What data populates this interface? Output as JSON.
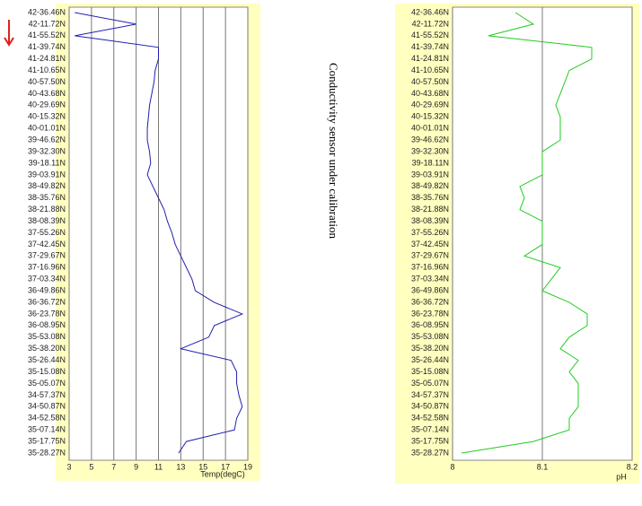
{
  "annotation": "Conductivity sensor under calibration",
  "chart_data": [
    {
      "type": "line",
      "orientation": "horizontal",
      "xlabel": "Temp(degC)",
      "categories": [
        "42-36.46N",
        "42-11.72N",
        "41-55.52N",
        "41-39.74N",
        "41-24.81N",
        "41-10.65N",
        "40-57.50N",
        "40-43.68N",
        "40-29.69N",
        "40-15.32N",
        "40-01.01N",
        "39-46.62N",
        "39-32.30N",
        "39-18.11N",
        "39-03.91N",
        "38-49.82N",
        "38-35.76N",
        "38-21.88N",
        "38-08.39N",
        "37-55.26N",
        "37-42.45N",
        "37-29.67N",
        "37-16.96N",
        "37-03.34N",
        "36-49.86N",
        "36-36.72N",
        "36-23.78N",
        "36-08.95N",
        "35-53.08N",
        "35-38.20N",
        "35-26.44N",
        "35-15.08N",
        "35-05.07N",
        "34-57.37N",
        "34-50.87N",
        "34-52.58N",
        "35-07.14N",
        "35-17.75N",
        "35-28.27N"
      ],
      "series": [
        {
          "color": "#2020b0",
          "values": [
            3.5,
            9,
            3.5,
            11,
            11,
            10.7,
            10.6,
            10.4,
            10.2,
            10.1,
            10,
            10,
            10.2,
            10.3,
            10,
            10.5,
            11,
            11.5,
            11.8,
            12.2,
            12.5,
            13,
            13.5,
            14,
            14.3,
            16,
            18.5,
            16,
            15.5,
            13,
            17.5,
            18,
            18,
            18.2,
            18.5,
            18,
            17.8,
            13.5,
            12.8
          ]
        }
      ],
      "xlim": [
        3,
        19
      ],
      "xticks": [
        3,
        5,
        7,
        9,
        11,
        13,
        15,
        17,
        19
      ],
      "grid": true
    },
    {
      "type": "line",
      "orientation": "horizontal",
      "xlabel": "pH",
      "categories": [
        "42-36.46N",
        "42-11.72N",
        "41-55.52N",
        "41-39.74N",
        "41-24.81N",
        "41-10.65N",
        "40-57.50N",
        "40-43.68N",
        "40-29.69N",
        "40-15.32N",
        "40-01.01N",
        "39-46.62N",
        "39-32.30N",
        "39-18.11N",
        "39-03.91N",
        "38-49.82N",
        "38-35.76N",
        "38-21.88N",
        "38-08.39N",
        "37-55.26N",
        "37-42.45N",
        "37-29.67N",
        "37-16.96N",
        "37-03.34N",
        "36-49.86N",
        "36-36.72N",
        "36-23.78N",
        "36-08.95N",
        "35-53.08N",
        "35-38.20N",
        "35-26.44N",
        "35-15.08N",
        "35-05.07N",
        "34-57.37N",
        "34-50.87N",
        "34-52.58N",
        "35-07.14N",
        "35-17.75N",
        "35-28.27N"
      ],
      "series": [
        {
          "color": "#22cc22",
          "values": [
            8.07,
            8.09,
            8.04,
            8.155,
            8.155,
            8.13,
            8.125,
            8.12,
            8.115,
            8.12,
            8.12,
            8.12,
            8.1,
            8.1,
            8.1,
            8.075,
            8.08,
            8.075,
            8.1,
            8.1,
            8.1,
            8.08,
            8.12,
            8.11,
            8.1,
            8.13,
            8.15,
            8.15,
            8.13,
            8.12,
            8.14,
            8.13,
            8.14,
            8.14,
            8.14,
            8.13,
            8.13,
            8.09,
            8.01
          ]
        }
      ],
      "xlim": [
        8,
        8.2
      ],
      "xticks": [
        8,
        8.1,
        8.2
      ],
      "grid": true
    }
  ]
}
